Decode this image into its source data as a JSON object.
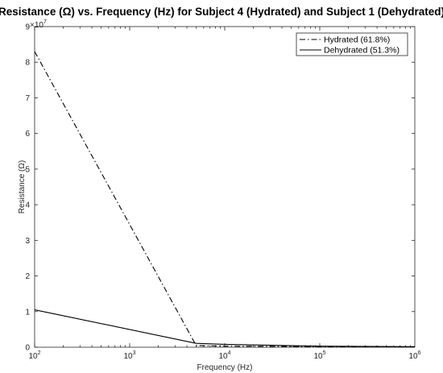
{
  "chart_data": {
    "type": "line",
    "title": "Resistance (Ω) vs. Frequency (Hz) for Subject 4 (Hydrated) and Subject 1 (Dehydrated)",
    "xlabel": "Frequency (Hz)",
    "ylabel": "Resistance (Ω)",
    "x_scale": "log",
    "xlim": [
      100,
      1000000
    ],
    "ylim": [
      0,
      90000000
    ],
    "y_multiplier": "×10",
    "y_multiplier_exponent": "7",
    "x_ticks": [
      {
        "value": 100,
        "base": "10",
        "exp": "2"
      },
      {
        "value": 1000,
        "base": "10",
        "exp": "3"
      },
      {
        "value": 10000,
        "base": "10",
        "exp": "4"
      },
      {
        "value": 100000,
        "base": "10",
        "exp": "5"
      },
      {
        "value": 1000000,
        "base": "10",
        "exp": "6"
      }
    ],
    "y_ticks": [
      {
        "value": 0,
        "label": "0"
      },
      {
        "value": 10000000,
        "label": "1"
      },
      {
        "value": 20000000,
        "label": "2"
      },
      {
        "value": 30000000,
        "label": "3"
      },
      {
        "value": 40000000,
        "label": "4"
      },
      {
        "value": 50000000,
        "label": "5"
      },
      {
        "value": 60000000,
        "label": "6"
      },
      {
        "value": 70000000,
        "label": "7"
      },
      {
        "value": 80000000,
        "label": "8"
      },
      {
        "value": 90000000,
        "label": "9"
      }
    ],
    "grid": false,
    "legend_position": "top-right",
    "series": [
      {
        "name": "Hydrated (61.8%)",
        "line_style": "dash-dot",
        "color": "#000000",
        "x": [
          100,
          5000,
          10000,
          100000,
          1000000
        ],
        "y": [
          83000000,
          500000,
          300000,
          150000,
          100000
        ]
      },
      {
        "name": "Dehydrated (51.3%)",
        "line_style": "solid",
        "color": "#000000",
        "x": [
          100,
          5000,
          10000,
          100000,
          1000000
        ],
        "y": [
          10500000,
          1100000,
          800000,
          300000,
          150000
        ]
      }
    ]
  }
}
